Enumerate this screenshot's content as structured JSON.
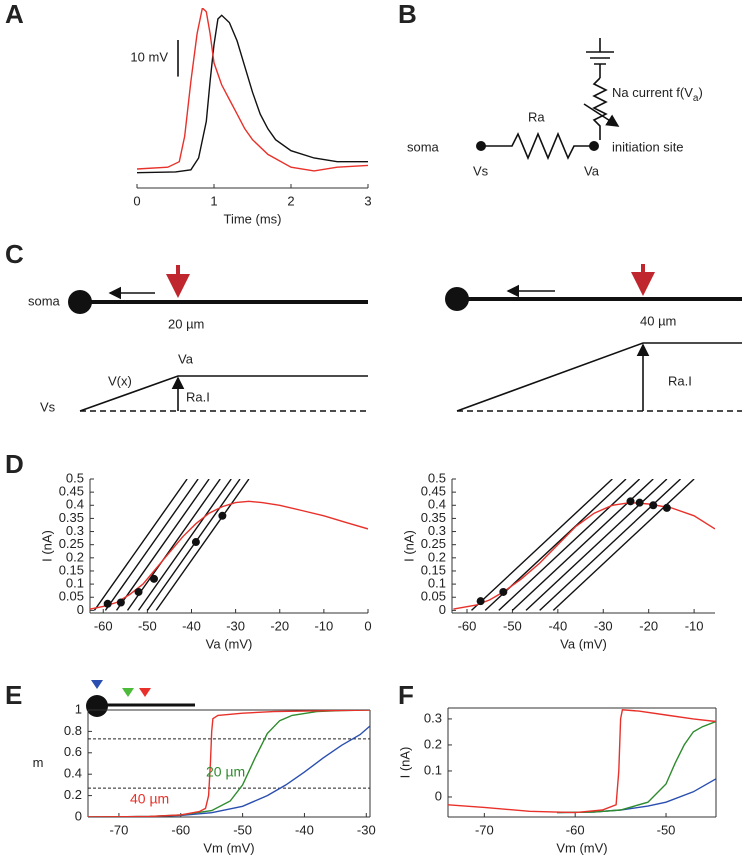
{
  "chart_data": [
    {
      "type": "line",
      "panel": "A",
      "xlabel": "Time (ms)",
      "xlim": [
        0,
        3
      ],
      "xticks": [
        0,
        1,
        2,
        3
      ],
      "ylim": [
        -2,
        45
      ],
      "scale_bar": {
        "value": 10,
        "label": "10 mV"
      },
      "series": [
        {
          "color": "#111111",
          "x": [
            0,
            0.5,
            0.7,
            0.8,
            0.9,
            0.95,
            1.0,
            1.05,
            1.1,
            1.2,
            1.3,
            1.4,
            1.5,
            1.6,
            1.7,
            1.8,
            2.0,
            2.3,
            2.6,
            3
          ],
          "values": [
            0,
            0.2,
            0.8,
            4,
            14,
            25,
            35,
            42,
            43,
            41,
            36,
            29,
            22,
            16,
            12,
            9,
            6,
            4,
            3,
            3
          ]
        },
        {
          "color": "#e8312a",
          "x": [
            0,
            0.4,
            0.55,
            0.62,
            0.7,
            0.78,
            0.85,
            0.9,
            0.95,
            1.0,
            1.1,
            1.2,
            1.3,
            1.4,
            1.5,
            1.7,
            2.0,
            2.3,
            2.6,
            3
          ],
          "values": [
            1,
            1.5,
            3,
            10,
            25,
            38,
            45,
            44,
            38,
            30,
            24,
            20,
            16,
            12,
            9,
            5,
            1.5,
            0.5,
            1.5,
            2
          ]
        }
      ]
    },
    {
      "type": "line",
      "panel": "D",
      "xlabel": "Va (mV)",
      "ylabel": "I (nA)",
      "xlim": [
        -63,
        0
      ],
      "xticks": [
        -60,
        -50,
        -40,
        -30,
        -20,
        -10,
        0
      ],
      "ylim": [
        -0.01,
        0.5
      ],
      "yticks": [
        0,
        0.05,
        0.1,
        0.15,
        0.2,
        0.25,
        0.3,
        0.35,
        0.4,
        0.45,
        0.5
      ],
      "series": [
        {
          "color": "#111111",
          "x": [
            -62,
            -41
          ],
          "values": [
            0,
            0.5
          ]
        },
        {
          "color": "#111111",
          "x": [
            -59.5,
            -38.5
          ],
          "values": [
            0,
            0.5
          ]
        },
        {
          "color": "#111111",
          "x": [
            -57,
            -36
          ],
          "values": [
            0,
            0.5
          ]
        },
        {
          "color": "#111111",
          "x": [
            -54.5,
            -33.5
          ],
          "values": [
            0,
            0.5
          ]
        },
        {
          "color": "#111111",
          "x": [
            -52,
            -31
          ],
          "values": [
            0,
            0.5
          ]
        },
        {
          "color": "#111111",
          "x": [
            -50,
            -29
          ],
          "values": [
            0,
            0.5
          ]
        },
        {
          "color": "#111111",
          "x": [
            -48,
            -27
          ],
          "values": [
            0,
            0.5
          ]
        },
        {
          "color": "#e8312a",
          "x": [
            -63,
            -60,
            -57,
            -54,
            -51,
            -48,
            -45,
            -42,
            -39,
            -36,
            -33,
            -30,
            -27,
            -24,
            -20,
            -15,
            -10,
            -5,
            0
          ],
          "values": [
            0.005,
            0.015,
            0.03,
            0.06,
            0.1,
            0.16,
            0.22,
            0.28,
            0.33,
            0.37,
            0.395,
            0.41,
            0.415,
            0.41,
            0.4,
            0.38,
            0.36,
            0.335,
            0.31
          ]
        },
        {
          "color": "#111111",
          "style": "dots",
          "x": [
            -59,
            -56,
            -52,
            -48.5,
            -39,
            -33
          ],
          "values": [
            0.025,
            0.03,
            0.07,
            0.12,
            0.26,
            0.36
          ]
        }
      ]
    },
    {
      "type": "line",
      "xlabel": "Va (mV)",
      "ylabel": "I (nA)",
      "xlim": [
        -63.3,
        -5.4
      ],
      "xticks": [
        -60,
        -50,
        -40,
        -30,
        -20,
        -10
      ],
      "ylim": [
        -0.01,
        0.5
      ],
      "yticks": [
        0,
        0.05,
        0.1,
        0.15,
        0.2,
        0.25,
        0.3,
        0.35,
        0.4,
        0.45,
        0.5
      ],
      "series": [
        {
          "color": "#111111",
          "x": [
            -59,
            -28
          ],
          "values": [
            0,
            0.5
          ]
        },
        {
          "color": "#111111",
          "x": [
            -56,
            -25
          ],
          "values": [
            0,
            0.5
          ]
        },
        {
          "color": "#111111",
          "x": [
            -53,
            -22
          ],
          "values": [
            0,
            0.5
          ]
        },
        {
          "color": "#111111",
          "x": [
            -50,
            -19
          ],
          "values": [
            0,
            0.5
          ]
        },
        {
          "color": "#111111",
          "x": [
            -47,
            -16
          ],
          "values": [
            0,
            0.5
          ]
        },
        {
          "color": "#111111",
          "x": [
            -44,
            -13
          ],
          "values": [
            0,
            0.5
          ]
        },
        {
          "color": "#111111",
          "x": [
            -41,
            -10
          ],
          "values": [
            0,
            0.5
          ]
        },
        {
          "color": "#e8312a",
          "x": [
            -63,
            -58,
            -55,
            -52,
            -48,
            -44,
            -40,
            -36,
            -32,
            -28,
            -24,
            -20,
            -15,
            -10,
            -5.4
          ],
          "values": [
            0.005,
            0.02,
            0.04,
            0.07,
            0.12,
            0.18,
            0.25,
            0.32,
            0.37,
            0.4,
            0.41,
            0.405,
            0.39,
            0.36,
            0.31
          ]
        },
        {
          "color": "#111111",
          "style": "dots",
          "x": [
            -57,
            -52,
            -24,
            -22,
            -19,
            -16
          ],
          "values": [
            0.035,
            0.07,
            0.415,
            0.41,
            0.4,
            0.39
          ]
        }
      ]
    },
    {
      "type": "line",
      "panel": "E",
      "xlabel": "Vm (mV)",
      "ylabel": "m",
      "xlim": [
        -75,
        -29.4
      ],
      "xticks": [
        -70,
        -60,
        -50,
        -40,
        -30
      ],
      "ylim": [
        0,
        1
      ],
      "yticks": [
        0,
        0.2,
        0.4,
        0.6,
        0.8,
        1
      ],
      "reference_lines": [
        0.27,
        0.73
      ],
      "annotations": [
        {
          "text": "20 µm",
          "color": "#2e8b2e"
        },
        {
          "text": "40 µm",
          "color": "#e8312a"
        }
      ],
      "series": [
        {
          "color": "#2a4fb0",
          "x": [
            -75,
            -65,
            -60,
            -55,
            -50,
            -46,
            -43,
            -40,
            -37,
            -34,
            -31,
            -29.4
          ],
          "values": [
            0,
            0.005,
            0.015,
            0.04,
            0.1,
            0.2,
            0.3,
            0.42,
            0.55,
            0.67,
            0.77,
            0.85
          ]
        },
        {
          "color": "#2e8b2e",
          "x": [
            -75,
            -65,
            -60,
            -55,
            -52,
            -50,
            -48,
            -46,
            -44,
            -42,
            -38,
            -34,
            -29.4
          ],
          "values": [
            0,
            0.005,
            0.02,
            0.06,
            0.15,
            0.3,
            0.55,
            0.78,
            0.9,
            0.95,
            0.985,
            0.995,
            1
          ]
        },
        {
          "color": "#e8312a",
          "x": [
            -75,
            -65,
            -60,
            -57,
            -56,
            -55.5,
            -55.2,
            -55,
            -54.8,
            -54,
            -50,
            -45,
            -40,
            -29.4
          ],
          "values": [
            0,
            0.005,
            0.02,
            0.05,
            0.08,
            0.2,
            0.5,
            0.8,
            0.92,
            0.95,
            0.97,
            0.985,
            0.99,
            1
          ]
        }
      ]
    },
    {
      "type": "line",
      "panel": "F",
      "xlabel": "Vm (mV)",
      "ylabel": "I (nA)",
      "xlim": [
        -74,
        -44.5
      ],
      "xticks": [
        -70,
        -60,
        -50
      ],
      "ylim": [
        -0.077,
        0.342
      ],
      "yticks": [
        0,
        0.1,
        0.2,
        0.3
      ],
      "series": [
        {
          "color": "#2a4fb0",
          "x": [
            -62,
            -58,
            -55,
            -52,
            -50,
            -47,
            -44.5
          ],
          "values": [
            -0.06,
            -0.058,
            -0.05,
            -0.035,
            -0.02,
            0.02,
            0.07
          ]
        },
        {
          "color": "#2e8b2e",
          "x": [
            -62,
            -58,
            -55,
            -52,
            -50,
            -49,
            -48,
            -47,
            -46,
            -44.5
          ],
          "values": [
            -0.06,
            -0.058,
            -0.05,
            -0.02,
            0.05,
            0.13,
            0.2,
            0.25,
            0.27,
            0.29
          ]
        },
        {
          "color": "#e8312a",
          "x": [
            -74,
            -70,
            -65,
            -60,
            -57,
            -55.5,
            -55.2,
            -55,
            -54.8,
            -53,
            -50,
            -47,
            -44.5
          ],
          "values": [
            -0.03,
            -0.04,
            -0.055,
            -0.06,
            -0.05,
            -0.03,
            0.1,
            0.3,
            0.335,
            0.33,
            0.315,
            0.3,
            0.29
          ]
        }
      ]
    }
  ],
  "diagram_b": {
    "letter": "B",
    "na_label": "Na current f(V",
    "na_sub": "a",
    "na_close": ")",
    "ra": "Ra",
    "soma": "soma",
    "vs": "Vs",
    "va": "Va",
    "site": "initiation site"
  },
  "diagram_c": {
    "letter": "C",
    "soma": "soma",
    "left_length": "20 µm",
    "right_length": "40 µm",
    "va": "Va",
    "vx": "V(x)",
    "vs": "Vs",
    "left_rai": "Ra.I",
    "right_rai": "Ra.I"
  }
}
